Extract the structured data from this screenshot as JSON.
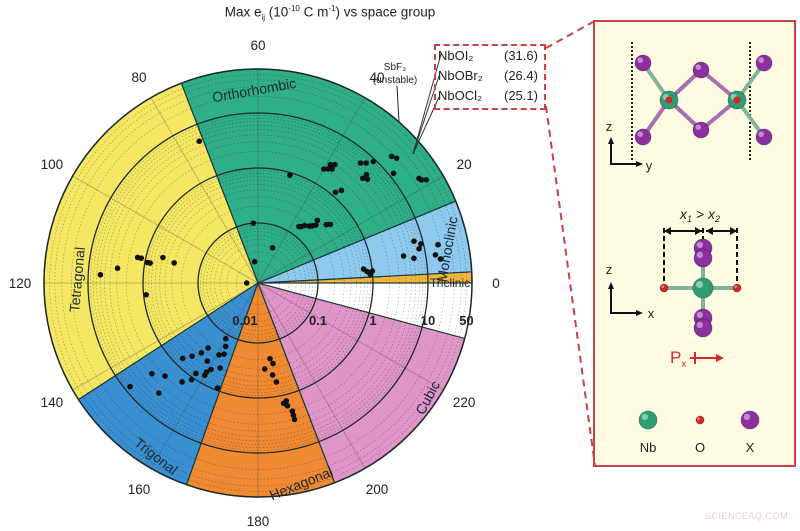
{
  "title": {
    "text_main": "Max e",
    "text_sub": "ij",
    "text_rest_a": " (10",
    "text_sup": "-10",
    "text_rest_b": " C m",
    "text_sup2": "-1",
    "text_rest_c": ") vs space group"
  },
  "callout": {
    "rows": [
      {
        "formula": "NbOI₂",
        "value": "(31.6)"
      },
      {
        "formula": "NbOBr₂",
        "value": "(26.4)"
      },
      {
        "formula": "NbOCl₂",
        "value": "(25.1)"
      }
    ],
    "annotation_line1": "SbF₃",
    "annotation_line2": "(unstable)",
    "border_color": "#c8414b"
  },
  "chart_data": {
    "type": "scatter",
    "subtype": "polar",
    "title": "Max e_ij (10^-10 C m^-1) vs space group",
    "angular_axis": {
      "label": "space group",
      "ticks": [
        0,
        20,
        40,
        60,
        80,
        100,
        120,
        140,
        160,
        180,
        200,
        220
      ],
      "range": [
        0,
        230
      ],
      "degrees_per_unit": 1.5
    },
    "radial_axis": {
      "label": "Max e_ij (10^-10 C m^-1)",
      "scale": "log",
      "ticks": [
        "0.01",
        "0.1",
        "1",
        "10",
        "50"
      ],
      "range": [
        0.01,
        50
      ]
    },
    "sectors": [
      {
        "name": "Triclinic",
        "from": 0,
        "to": 2,
        "color": "#f0b63c"
      },
      {
        "name": "Monoclinic",
        "from": 2,
        "to": 15,
        "color": "#8ec9ee"
      },
      {
        "name": "Orthorhombic",
        "from": 15,
        "to": 74,
        "color": "#2fae8a"
      },
      {
        "name": "Tetragonal",
        "from": 74,
        "to": 142,
        "color": "#f5e663"
      },
      {
        "name": "Trigonal",
        "from": 142,
        "to": 167,
        "color": "#3a8fd0"
      },
      {
        "name": "Hexagonal",
        "from": 167,
        "to": 194,
        "color": "#ef8a32"
      },
      {
        "name": "Cubic",
        "from": 194,
        "to": 230,
        "color": "#df95c8"
      }
    ],
    "points": [
      [
        21,
        31.6
      ],
      [
        21.5,
        26.4
      ],
      [
        22,
        25.1
      ],
      [
        28,
        20
      ],
      [
        29,
        18
      ],
      [
        26,
        12
      ],
      [
        31,
        9
      ],
      [
        32,
        7
      ],
      [
        33,
        6
      ],
      [
        30,
        5
      ],
      [
        29,
        4.5
      ],
      [
        30,
        4
      ],
      [
        38,
        3
      ],
      [
        39,
        2.7
      ],
      [
        38,
        2.4
      ],
      [
        39,
        2.2
      ],
      [
        40,
        2
      ],
      [
        32,
        1.5
      ],
      [
        33,
        1.2
      ],
      [
        49,
        0.9
      ],
      [
        26,
        0.4
      ],
      [
        27,
        0.35
      ],
      [
        31,
        0.3
      ],
      [
        30,
        0.25
      ],
      [
        31,
        0.22
      ],
      [
        32,
        0.2
      ],
      [
        34,
        0.18
      ],
      [
        35,
        0.16
      ],
      [
        36,
        0.15
      ],
      [
        45,
        0.04
      ],
      [
        63,
        0.1
      ],
      [
        66,
        0.02
      ],
      [
        75,
        5
      ],
      [
        8,
        8
      ],
      [
        9,
        9
      ],
      [
        10,
        7
      ],
      [
        6,
        6
      ],
      [
        7,
        4
      ],
      [
        6,
        15
      ],
      [
        8,
        18
      ],
      [
        5,
        18
      ],
      [
        4,
        1
      ],
      [
        4,
        0.8
      ],
      [
        5,
        0.7
      ],
      [
        3,
        0.9
      ],
      [
        118,
        6
      ],
      [
        116,
        3
      ],
      [
        112,
        1.4
      ],
      [
        112,
        1.2
      ],
      [
        113,
        0.9
      ],
      [
        113,
        0.8
      ],
      [
        110,
        0.5
      ],
      [
        111,
        0.3
      ],
      [
        120,
        0.013
      ],
      [
        124,
        0.9
      ],
      [
        146,
        8
      ],
      [
        150,
        0.7
      ],
      [
        152,
        0.5
      ],
      [
        154,
        0.35
      ],
      [
        155,
        0.25
      ],
      [
        150,
        2
      ],
      [
        155,
        1.5
      ],
      [
        157,
        1.1
      ],
      [
        157,
        0.8
      ],
      [
        160,
        0.7
      ],
      [
        160,
        0.6
      ],
      [
        161,
        0.5
      ],
      [
        158,
        0.4
      ],
      [
        161,
        0.25
      ],
      [
        163,
        0.22
      ],
      [
        162,
        0.16
      ],
      [
        160,
        0.12
      ],
      [
        166,
        0.9
      ],
      [
        164,
        0.4
      ],
      [
        147,
        2.8
      ],
      [
        152,
        4
      ],
      [
        183,
        0.3
      ],
      [
        186,
        0.2
      ],
      [
        187,
        0.25
      ],
      [
        186,
        0.4
      ],
      [
        187,
        0.55
      ],
      [
        189,
        1.3
      ],
      [
        188,
        1.4
      ],
      [
        189,
        1.6
      ],
      [
        190,
        2.1
      ],
      [
        190,
        2.5
      ],
      [
        190,
        3
      ]
    ]
  },
  "panel": {
    "axis_top": {
      "z": "z",
      "y": "y"
    },
    "axis_bottom": {
      "z": "z",
      "x": "x"
    },
    "relation": {
      "x1": "x",
      "x1_sub": "1",
      "gt": ">",
      "x2": "x",
      "x2_sub": "2"
    },
    "polarization": {
      "p": "P",
      "p_sub": "x"
    },
    "legend": [
      {
        "label": "Nb",
        "color": "#2e9e72"
      },
      {
        "label": "O",
        "color": "#d7262a"
      },
      {
        "label": "X",
        "color": "#8c2fa0"
      }
    ]
  },
  "watermark": "SCIENCEAQ.COM"
}
